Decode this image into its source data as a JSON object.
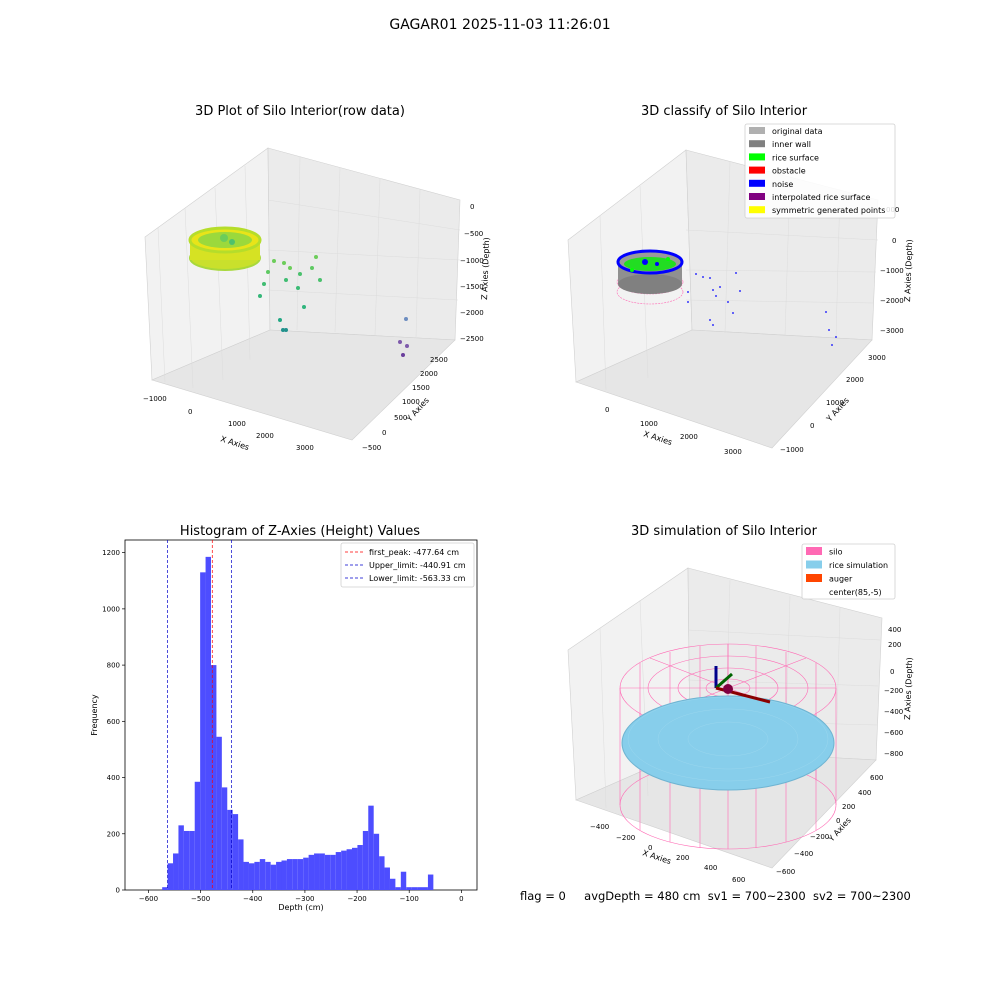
{
  "suptitle": "GAGAR01 2025-11-03 11:26:01",
  "footer": {
    "flag": "flag = 0",
    "avgDepth": "avgDepth = 480 cm",
    "sv1": "sv1 = 700~2300",
    "sv2": "sv2 = 700~2300"
  },
  "colors": {
    "histogram_bar": "#4d4dff",
    "first_peak_line": "#ff0000",
    "limit_lines": "#0000cc",
    "silo": "#ff69b4",
    "rice_simulation": "#87ceeb",
    "auger": "#ff4500",
    "inner_wall": "#808080",
    "rice_surface": "#00ff00",
    "noise": "#0000ff",
    "interpolated_rice_surface": "#800080",
    "symmetric_generated_points": "#ffff00",
    "original_data": "#b0b0b0"
  },
  "chart_data": [
    {
      "type": "scatter",
      "projection": "3d",
      "title": "3D Plot of Silo Interior(row data)",
      "xlabel": "X Axies",
      "ylabel": "Y Axies",
      "zlabel": "Z Axies (Depth)",
      "x_ticks": [
        "−1000",
        "0",
        "1000",
        "2000",
        "3000"
      ],
      "y_ticks": [
        "−500",
        "0",
        "500",
        "1000",
        "1500",
        "2000",
        "2500"
      ],
      "z_ticks": [
        "0",
        "−500",
        "−1000",
        "−1500",
        "−2000",
        "−2500"
      ],
      "colormap": "viridis"
    },
    {
      "type": "scatter",
      "projection": "3d",
      "title": "3D classify of Silo Interior",
      "xlabel": "X Axies",
      "ylabel": "Y Axies",
      "zlabel": "Z Axies (Depth)",
      "x_ticks": [
        "0",
        "1000",
        "2000",
        "3000"
      ],
      "y_ticks": [
        "−1000",
        "0",
        "1000",
        "2000",
        "3000"
      ],
      "z_ticks": [
        "000",
        "0",
        "−1000",
        "−2000",
        "−3000"
      ],
      "legend": [
        "original data",
        "inner wall",
        "rice surface",
        "obstacle",
        "noise",
        "interpolated rice surface",
        "symmetric generated points"
      ],
      "legend_colors": [
        "#b0b0b0",
        "#808080",
        "#00ff00",
        "#ff0000",
        "#0000ff",
        "#800080",
        "#ffff00"
      ],
      "legend_loc": "upper right"
    },
    {
      "type": "bar",
      "title": "Histogram of Z-Axies (Height) Values",
      "xlabel": "Depth (cm)",
      "ylabel": "Frequency",
      "xlim": [
        -645,
        30
      ],
      "ylim": [
        0,
        1245
      ],
      "x_ticks": [
        -600,
        -500,
        -400,
        -300,
        -200,
        -100,
        0
      ],
      "x_tick_labels": [
        "−600",
        "−500",
        "−400",
        "−300",
        "−200",
        "−100",
        "0"
      ],
      "y_ticks": [
        0,
        200,
        400,
        600,
        800,
        1000,
        1200
      ],
      "bin_width": 10.4,
      "bin_start": -573.7,
      "values": [
        10,
        95,
        130,
        230,
        210,
        210,
        385,
        1130,
        1185,
        800,
        545,
        365,
        285,
        270,
        180,
        100,
        95,
        100,
        110,
        100,
        90,
        100,
        105,
        110,
        110,
        110,
        115,
        125,
        130,
        130,
        125,
        125,
        135,
        140,
        145,
        150,
        160,
        210,
        300,
        200,
        120,
        80,
        40,
        10,
        65,
        10,
        10,
        10,
        10,
        55
      ],
      "lines": [
        {
          "name": "first_peak: -477.64 cm",
          "x": -477.64,
          "color": "#ff0000"
        },
        {
          "name": "Upper_limit: -440.91 cm",
          "x": -440.91,
          "color": "#0000cc"
        },
        {
          "name": "Lower_limit: -563.33 cm",
          "x": -563.33,
          "color": "#0000cc"
        }
      ],
      "legend_loc": "upper right"
    },
    {
      "type": "surface",
      "projection": "3d",
      "title": "3D simulation of Silo Interior",
      "xlabel": "X Axies",
      "ylabel": "Y Axies",
      "zlabel": "Z Axies (Depth)",
      "x_ticks": [
        "−400",
        "−200",
        "0",
        "200",
        "400",
        "600"
      ],
      "y_ticks": [
        "−600",
        "−400",
        "−200",
        "0",
        "200",
        "400",
        "600"
      ],
      "z_ticks": [
        "400",
        "200",
        "0",
        "−200",
        "−400",
        "−600",
        "−800"
      ],
      "legend": [
        "silo",
        "rice simulation",
        "auger",
        "center(85,-5)"
      ],
      "legend_colors": [
        "#ff69b4",
        "#87ceeb",
        "#ff4500",
        "#ffffff"
      ],
      "legend_loc": "upper right"
    }
  ]
}
